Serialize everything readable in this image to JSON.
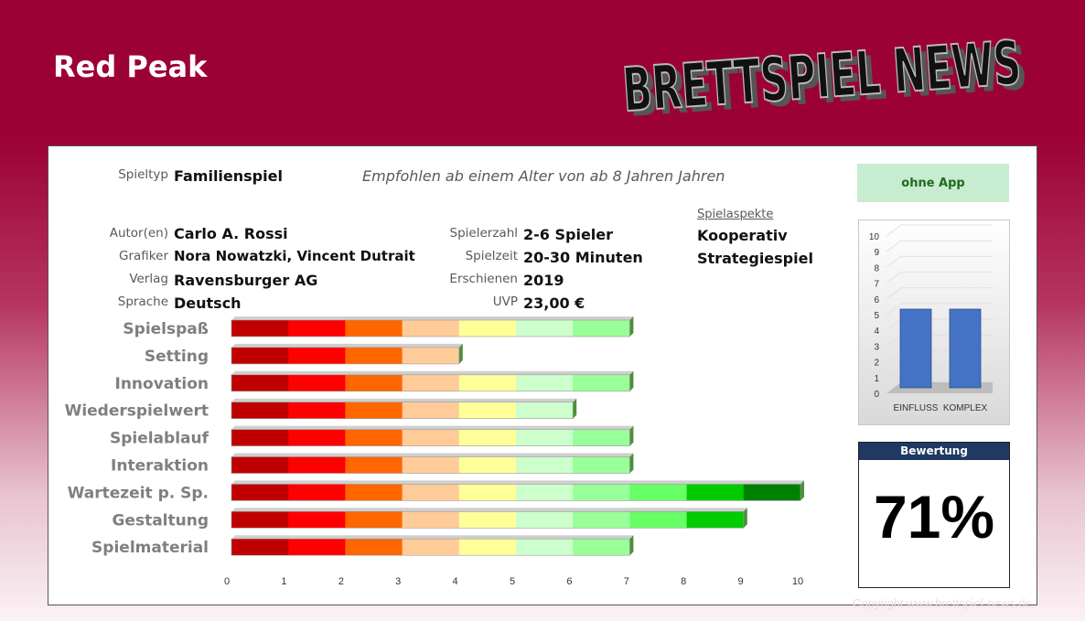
{
  "title": "Red Peak",
  "logo": {
    "text": "BRETTSPIEL NEWS"
  },
  "info": {
    "spieltyp_label": "Spieltyp",
    "spieltyp": "Familienspiel",
    "age_text": "Empfohlen ab einem Alter von ab 8 Jahren Jahren",
    "autor_label": "Autor(en)",
    "autor": "Carlo A. Rossi",
    "grafiker_label": "Grafiker",
    "grafiker": "Nora Nowatzki, Vincent Dutrait",
    "verlag_label": "Verlag",
    "verlag": "Ravensburger AG",
    "sprache_label": "Sprache",
    "sprache": "Deutsch",
    "spielerzahl_label": "Spielerzahl",
    "spielerzahl": "2-6 Spieler",
    "spielzeit_label": "Spielzeit",
    "spielzeit": "20-30 Minuten",
    "erschienen_label": "Erschienen",
    "erschienen": "2019",
    "uvp_label": "UVP",
    "uvp": "23,00 €",
    "aspekte_label": "Spielaspekte",
    "aspekte": [
      "Kooperativ",
      "Strategiespiel"
    ]
  },
  "app_box": "ohne App",
  "rating": {
    "label": "Bewertung",
    "value": "71%"
  },
  "copyright": "Copyright www.brettspiel-news.de",
  "colors": {
    "segments": [
      "#c00000",
      "#ff0000",
      "#ff6600",
      "#ffcc99",
      "#ffff99",
      "#ccffcc",
      "#99ff99",
      "#66ff66",
      "#00cc00",
      "#008000"
    ],
    "mini_bar": "#4472c4",
    "header": "#9c0136"
  },
  "chart_data": [
    {
      "type": "bar",
      "orientation": "horizontal",
      "categories": [
        "Spielspaß",
        "Setting",
        "Innovation",
        "Wiederspielwert",
        "Spielablauf",
        "Interaktion",
        "Wartezeit p. Sp.",
        "Gestaltung",
        "Spielmaterial"
      ],
      "values": [
        7,
        4,
        7,
        6,
        7,
        7,
        10,
        9,
        7
      ],
      "xlim": [
        0,
        10
      ],
      "xticks": [
        0,
        1,
        2,
        3,
        4,
        5,
        6,
        7,
        8,
        9,
        10
      ]
    },
    {
      "type": "bar",
      "categories": [
        "EINFLUSS",
        "KOMPLEX"
      ],
      "values": [
        5,
        5
      ],
      "ylim": [
        0,
        10
      ],
      "yticks": [
        0,
        1,
        2,
        3,
        4,
        5,
        6,
        7,
        8,
        9,
        10
      ]
    }
  ]
}
